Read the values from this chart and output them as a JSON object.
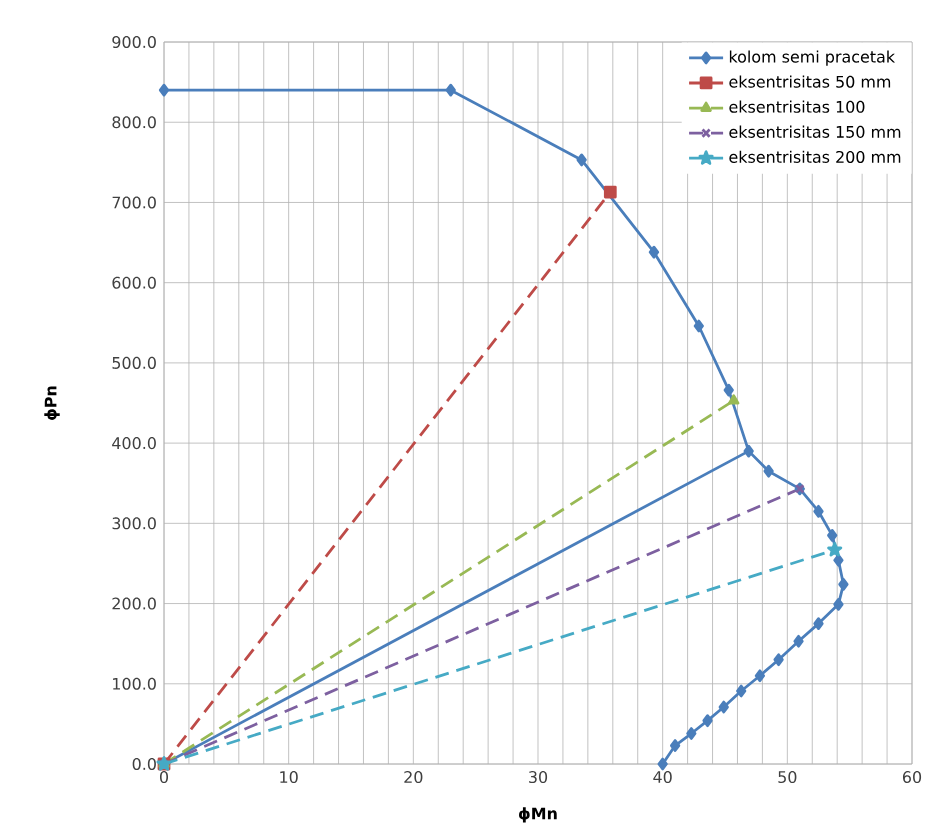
{
  "chart_data": {
    "type": "line",
    "xlabel": "ϕMn",
    "ylabel": "ϕPn",
    "xlim": [
      0,
      60
    ],
    "ylim": [
      0,
      900
    ],
    "xticks": [
      0,
      {
        "value": 2,
        "label": null
      },
      {
        "value": 4,
        "label": null
      },
      {
        "value": 6,
        "label": null
      },
      {
        "value": 8,
        "label": null
      },
      10,
      {
        "value": 12,
        "label": null
      },
      {
        "value": 14,
        "label": null
      },
      {
        "value": 16,
        "label": null
      },
      {
        "value": 18,
        "label": null
      },
      20,
      {
        "value": 22,
        "label": null
      },
      {
        "value": 24,
        "label": null
      },
      {
        "value": 26,
        "label": null
      },
      {
        "value": 28,
        "label": null
      },
      30,
      {
        "value": 32,
        "label": null
      },
      {
        "value": 34,
        "label": null
      },
      {
        "value": 36,
        "label": null
      },
      {
        "value": 38,
        "label": null
      },
      40,
      {
        "value": 42,
        "label": null
      },
      {
        "value": 44,
        "label": null
      },
      {
        "value": 46,
        "label": null
      },
      {
        "value": 48,
        "label": null
      },
      50,
      {
        "value": 52,
        "label": null
      },
      {
        "value": 54,
        "label": null
      },
      {
        "value": 56,
        "label": null
      },
      {
        "value": 58,
        "label": null
      },
      60
    ],
    "yticks": [
      {
        "value": 0,
        "label": "0.0"
      },
      {
        "value": 100,
        "label": "100.0"
      },
      {
        "value": 200,
        "label": "200.0"
      },
      {
        "value": 300,
        "label": "300.0"
      },
      {
        "value": 400,
        "label": "400.0"
      },
      {
        "value": 500,
        "label": "500.0"
      },
      {
        "value": 600,
        "label": "600.0"
      },
      {
        "value": 700,
        "label": "700.0"
      },
      {
        "value": 800,
        "label": "800.0"
      },
      {
        "value": 900,
        "label": "900.0"
      }
    ],
    "grid": true,
    "legend": "top right",
    "series": [
      {
        "name": "kolom semi pracetak",
        "color": "#4a7ebb",
        "marker": "diamond",
        "line_style": "solid",
        "x": [
          0,
          23,
          33.5,
          39.3,
          42.9,
          45.3,
          46.9,
          48.5,
          51.0,
          52.5,
          53.6,
          54.1,
          54.5,
          54.1,
          52.5,
          50.9,
          49.3,
          47.8,
          46.3,
          44.9,
          43.6,
          42.3,
          41.0,
          40.0
        ],
        "values": [
          840,
          840,
          753,
          638,
          546,
          466,
          390,
          365,
          343,
          315,
          285,
          254,
          224,
          199,
          175,
          153,
          130,
          110,
          91,
          71,
          54,
          38,
          23,
          0
        ]
      },
      {
        "color": "#4a7ebb",
        "marker": "none",
        "line_style": "solid",
        "x": [
          0,
          46.9
        ],
        "values": [
          0,
          390
        ]
      },
      {
        "name": "eksentrisitas 50 mm",
        "color": "#be4b48",
        "marker": "square",
        "line_style": "dashed",
        "x": [
          0,
          35.8
        ],
        "values": [
          0,
          713
        ]
      },
      {
        "name": "eksentrisitas 100",
        "color": "#98b954",
        "marker": "triangle",
        "line_style": "dashed",
        "x": [
          0,
          45.7
        ],
        "values": [
          0,
          453
        ]
      },
      {
        "name": "eksentrisitas 150 mm",
        "color": "#7d60a0",
        "marker": "cross",
        "line_style": "dashed",
        "x": [
          0,
          51.0
        ],
        "values": [
          0,
          343
        ]
      },
      {
        "name": "eksentrisitas 200 mm",
        "color": "#46aac5",
        "marker": "star",
        "line_style": "dashed",
        "x": [
          0,
          53.8
        ],
        "values": [
          0,
          267
        ]
      }
    ]
  }
}
